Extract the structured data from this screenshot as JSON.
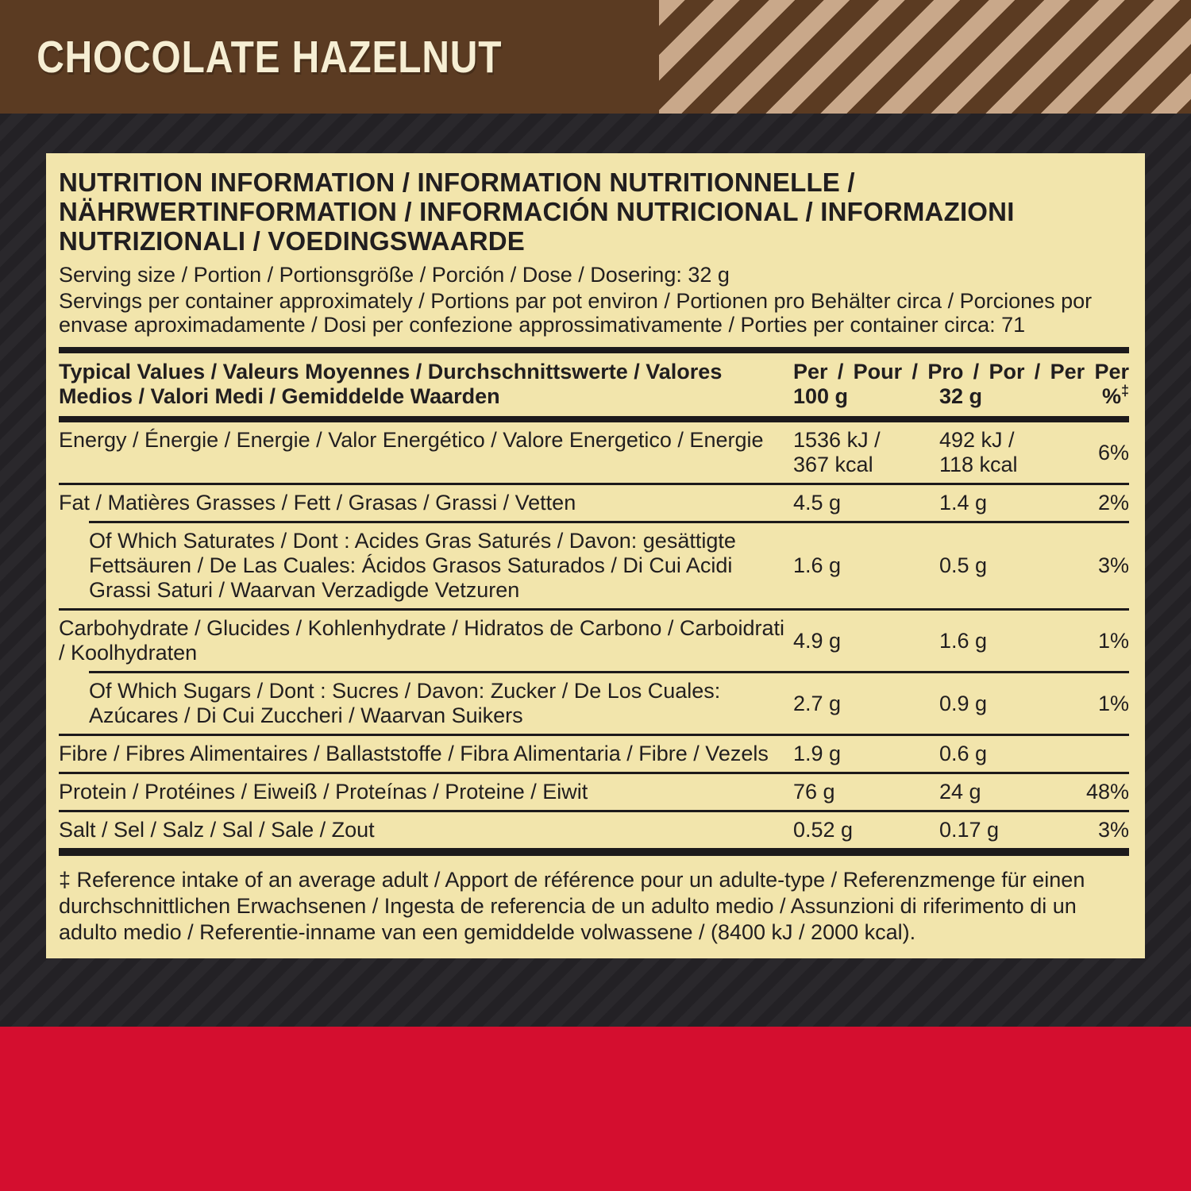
{
  "colors": {
    "header_brown": "#5b3b22",
    "stripe_tan": "#c9a88a",
    "bg_dark": "#232125",
    "panel_cream": "#f2e5ac",
    "ink": "#211e1f",
    "red": "#d40e2f",
    "title_cream": "#f6eed3"
  },
  "header": {
    "flavor_title": "CHOCOLATE HAZELNUT"
  },
  "panel": {
    "title": "NUTRITION INFORMATION / INFORMATION NUTRITIONNELLE / NÄHRWERTINFORMATION / INFORMACIÓN NUTRICIONAL / INFORMAZIONI NUTRIZIONALI / VOEDINGSWAARDE",
    "serving_size": "Serving size / Portion / Portionsgröße / Porción / Dose / Dosering: 32 g",
    "servings_per_container": "Servings per container approximately / Portions par pot environ / Portionen pro Behälter circa / Porciones por envase aproximadamente / Dosi per confezione approssimativamente / Porties per container circa: 71",
    "table": {
      "header_label": "Typical Values / Valeurs Moyennes / Durchschnittswerte / Valores Medios / Valori Medi / Gemiddelde Waarden",
      "header_per_line": "Per / Pour / Pro / Por / Per Per",
      "col_100g": "100 g",
      "col_32g": "32 g",
      "col_percent": "%",
      "col_percent_mark": "‡",
      "rows": [
        {
          "label": "Energy / Énergie / Energie / Valor Energético / Valore Energetico / Energie",
          "per100": [
            "1536 kJ /",
            "367 kcal"
          ],
          "per32": [
            "492 kJ /",
            "118 kcal"
          ],
          "ri": "6%",
          "sub": false,
          "align": "top",
          "divider": null
        },
        {
          "label": "Fat / Matières Grasses / Fett / Grasas / Grassi / Vetten",
          "per100": "4.5 g",
          "per32": "1.4 g",
          "ri": "2%",
          "sub": false,
          "divider": "full"
        },
        {
          "label": "Of Which Saturates / Dont : Acides Gras Saturés / Davon: gesättigte Fettsäuren / De Las Cuales: Ácidos Grasos Saturados / Di Cui Acidi Grassi Saturi / Waarvan Verzadigde Vetzuren",
          "per100": "1.6 g",
          "per32": "0.5 g",
          "ri": "3%",
          "sub": true,
          "divider": "indent"
        },
        {
          "label": "Carbohydrate / Glucides / Kohlenhydrate / Hidratos de Carbono / Carboidrati / Koolhydraten",
          "per100": "4.9 g",
          "per32": "1.6 g",
          "ri": "1%",
          "sub": false,
          "divider": "full"
        },
        {
          "label": "Of Which Sugars / Dont : Sucres / Davon: Zucker / De Los Cuales: Azúcares / Di Cui Zuccheri / Waarvan Suikers",
          "per100": "2.7 g",
          "per32": "0.9 g",
          "ri": "1%",
          "sub": true,
          "divider": "indent"
        },
        {
          "label": "Fibre / Fibres Alimentaires / Ballaststoffe / Fibra Alimentaria / Fibre / Vezels",
          "per100": "1.9 g",
          "per32": "0.6 g",
          "ri": "",
          "sub": false,
          "divider": "full"
        },
        {
          "label": "Protein / Protéines / Eiweiß / Proteínas / Proteine / Eiwit",
          "per100": "76 g",
          "per32": "24 g",
          "ri": "48%",
          "sub": false,
          "divider": "full"
        },
        {
          "label": "Salt / Sel / Salz / Sal / Sale / Zout",
          "per100": "0.52 g",
          "per32": "0.17 g",
          "ri": "3%",
          "sub": false,
          "divider": "full"
        }
      ]
    },
    "footnote": "‡ Reference intake of an average adult / Apport de référence pour un adulte-type / Referenzmenge für einen durchschnittlichen Erwachsenen / Ingesta de referencia de un adulto medio / Assunzioni di riferimento di un adulto medio / Referentie-inname van een gemiddelde volwassene / (8400 kJ / 2000 kcal)."
  }
}
